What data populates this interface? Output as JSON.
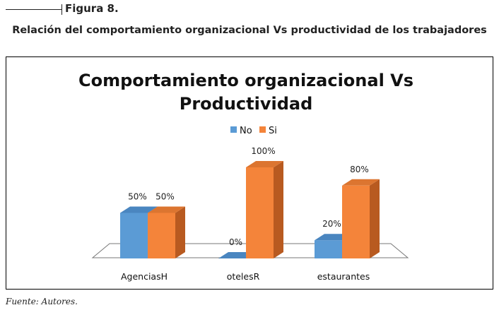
{
  "figure": {
    "label": "Figura 8.",
    "caption": "Relación del comportamiento organizacional Vs productividad de los trabajadores",
    "source": "Fuente: Autores."
  },
  "chart_data": {
    "type": "bar",
    "style": "3d-clustered-column",
    "title_lines": [
      "Comportamiento organizacional Vs",
      "Productividad"
    ],
    "categories": [
      "AgenciasH",
      "otelesR",
      "estaurantes"
    ],
    "series": [
      {
        "name": "No",
        "values": [
          50,
          0,
          20
        ],
        "labels": [
          "50%",
          "0%",
          "20%"
        ],
        "color": "#5B9BD5"
      },
      {
        "name": "Si",
        "values": [
          50,
          100,
          80
        ],
        "labels": [
          "50%",
          "100%",
          "80%"
        ],
        "color": "#ED7D31"
      }
    ],
    "ylim": [
      0,
      100
    ],
    "unit": "%",
    "legend_position": "top",
    "grid": false,
    "colors": {
      "no_front": "#5B9BD5",
      "no_top": "#4A86C0",
      "no_side": "#3D72A8",
      "si_front": "#F4843A",
      "si_top": "#DC7530",
      "si_side": "#B85A20"
    }
  }
}
